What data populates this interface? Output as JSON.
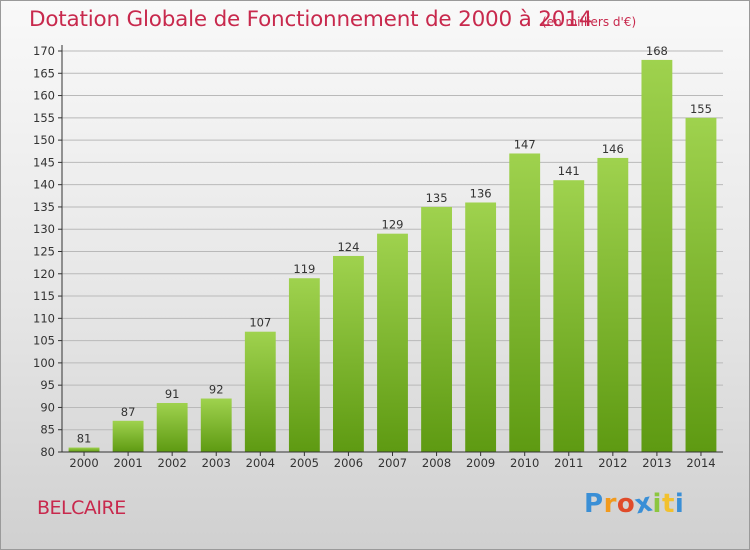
{
  "chart_data": {
    "type": "bar",
    "title": "Dotation Globale de Fonctionnement de 2000 à 2014",
    "subtitle": "(en milliers d'€)",
    "categories": [
      "2000",
      "2001",
      "2002",
      "2003",
      "2004",
      "2005",
      "2006",
      "2007",
      "2008",
      "2009",
      "2010",
      "2011",
      "2012",
      "2013",
      "2014"
    ],
    "values": [
      81,
      87,
      91,
      92,
      107,
      119,
      124,
      129,
      135,
      136,
      147,
      141,
      146,
      168,
      155
    ],
    "ylim": [
      80,
      170
    ],
    "yticks": [
      80,
      85,
      90,
      95,
      100,
      105,
      110,
      115,
      120,
      125,
      130,
      135,
      140,
      145,
      150,
      155,
      160,
      165,
      170
    ],
    "grid": true,
    "bar_color": "#7cbf2a",
    "bar_color_light": "#9fd24e",
    "bar_color_dark": "#5e9a12"
  },
  "commune": "BELCAIRE",
  "logo": {
    "letters": [
      "P",
      "r",
      "o",
      "x",
      "i",
      "t",
      "i"
    ],
    "colors": [
      "#3a8fd6",
      "#f29a1c",
      "#e04b2a",
      "#3a8fd6",
      "#8cc63f",
      "#f2c12e",
      "#3a8fd6"
    ]
  },
  "colors": {
    "accent": "#c8294d",
    "grid": "#b9b9b9",
    "axis": "#333333"
  }
}
